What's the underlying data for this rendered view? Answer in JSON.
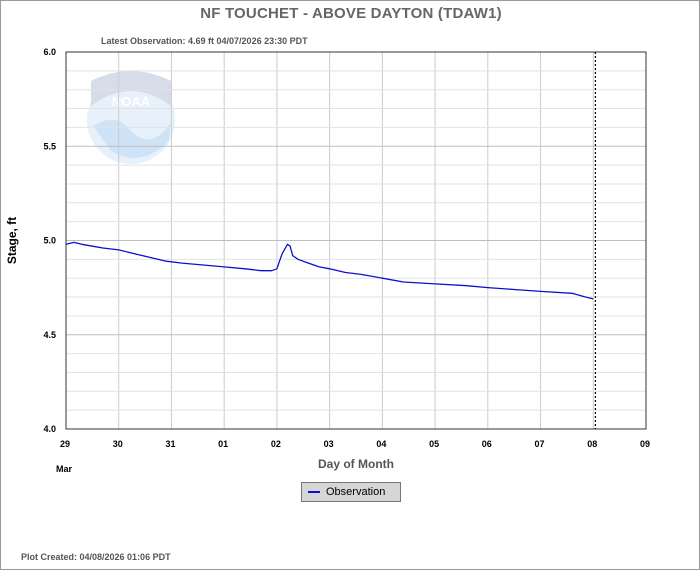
{
  "chart_data": {
    "type": "line",
    "title": "NF TOUCHET - ABOVE DAYTON  (TDAW1)",
    "subtitle": "Latest Observation: 4.69 ft 04/07/2026 23:30 PDT",
    "xlabel": "Day of Month",
    "ylabel": "Stage, ft",
    "x_tick_labels": [
      "29",
      "30",
      "31",
      "01",
      "02",
      "03",
      "04",
      "05",
      "06",
      "07",
      "08",
      "09"
    ],
    "x_month_label": "Mar",
    "xlim_days": [
      0,
      11
    ],
    "ylim": [
      4.0,
      6.0
    ],
    "y_ticks": [
      "4.0",
      "4.5",
      "5.0",
      "5.5",
      "6.0"
    ],
    "grid": true,
    "legend_position": "bottom-center",
    "vertical_marker_day": 10.04,
    "series": [
      {
        "name": "Observation",
        "color": "#1010cc",
        "x_days": [
          0,
          0.15,
          0.3,
          0.5,
          0.7,
          1.0,
          1.3,
          1.6,
          1.9,
          2.2,
          2.6,
          3.0,
          3.4,
          3.7,
          3.9,
          4.0,
          4.05,
          4.1,
          4.2,
          4.25,
          4.3,
          4.4,
          4.6,
          4.8,
          5.0,
          5.3,
          5.6,
          6.0,
          6.4,
          7.0,
          7.6,
          8.0,
          8.5,
          9.0,
          9.6,
          9.85,
          10.0
        ],
        "values": [
          4.98,
          4.99,
          4.98,
          4.97,
          4.96,
          4.95,
          4.93,
          4.91,
          4.89,
          4.88,
          4.87,
          4.86,
          4.85,
          4.84,
          4.84,
          4.85,
          4.89,
          4.93,
          4.98,
          4.97,
          4.92,
          4.9,
          4.88,
          4.86,
          4.85,
          4.83,
          4.82,
          4.8,
          4.78,
          4.77,
          4.76,
          4.75,
          4.74,
          4.73,
          4.72,
          4.7,
          4.69
        ]
      }
    ]
  },
  "footer": {
    "plot_created": "Plot Created: 04/08/2026 01:06 PDT"
  },
  "watermark": {
    "icon": "noaa-logo-icon",
    "text": "NOAA"
  }
}
